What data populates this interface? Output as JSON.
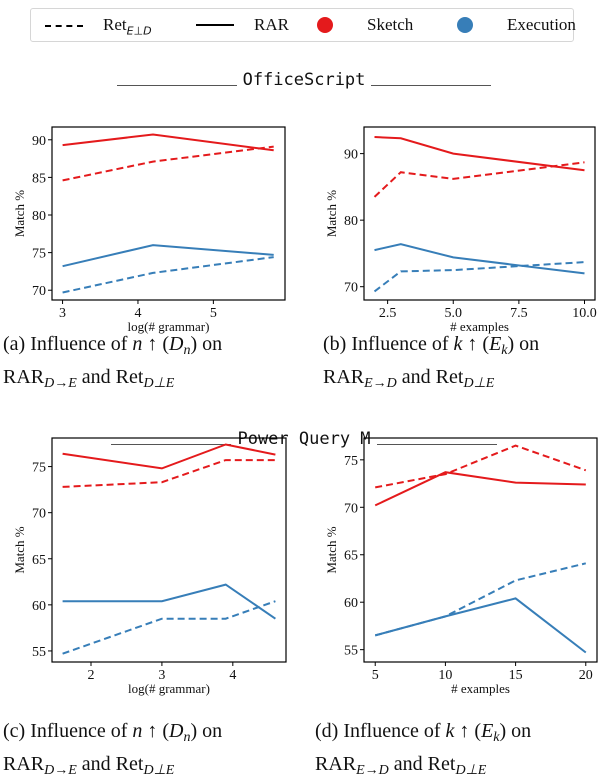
{
  "legend": {
    "items": [
      {
        "label": "Ret",
        "sub": "E⊥D",
        "marker": "dashed-line"
      },
      {
        "label": "RAR",
        "sub": "",
        "marker": "solid-line"
      },
      {
        "label": "Sketch",
        "marker": "dot",
        "color": "#e41a1c"
      },
      {
        "label": "Execution",
        "marker": "dot",
        "color": "#377eb8"
      }
    ]
  },
  "sections": [
    {
      "title": "OfficeScript"
    },
    {
      "title": "Power Query M"
    }
  ],
  "colors": {
    "sketch": "#e41a1c",
    "execution": "#377eb8"
  },
  "captions": [
    {
      "prefix": "(a) Influence of ",
      "var": "n",
      "arrow": " ↑ (",
      "sym": "D",
      "sub": "n",
      "suffix": ") on",
      "rar": "RAR",
      "rar_sub": "D→E",
      "and": " and Ret",
      "ret_sub": "D⊥E"
    },
    {
      "prefix": "(b) Influence of ",
      "var": "k",
      "arrow": " ↑ (",
      "sym": "E",
      "sub": "k",
      "suffix": ") on",
      "rar": "RAR",
      "rar_sub": "E→D",
      "and": " and Ret",
      "ret_sub": "D⊥E"
    },
    {
      "prefix": "(c) Influence of ",
      "var": "n",
      "arrow": " ↑ (",
      "sym": "D",
      "sub": "n",
      "suffix": ") on",
      "rar": "RAR",
      "rar_sub": "D→E",
      "and": " and Ret",
      "ret_sub": "D⊥E"
    },
    {
      "prefix": "(d) Influence of ",
      "var": "k",
      "arrow": " ↑ (",
      "sym": "E",
      "sub": "k",
      "suffix": ") on",
      "rar": "RAR",
      "rar_sub": "E→D",
      "and": " and Ret",
      "ret_sub": "D⊥E"
    }
  ],
  "chart_data": [
    {
      "type": "line",
      "xlabel": "log(# grammar)",
      "ylabel": "Match %",
      "xlim": [
        2.86,
        5.95
      ],
      "ylim": [
        68.7,
        91.7
      ],
      "grid": false,
      "xticks": [
        3,
        4,
        5
      ],
      "xtick_labels": [
        "3",
        "4",
        "5"
      ],
      "yticks": [
        70,
        75,
        80,
        85,
        90
      ],
      "ytick_labels": [
        "70",
        "75",
        "80",
        "85",
        "90"
      ],
      "x": [
        3,
        4.2,
        5.8
      ],
      "series": [
        {
          "metric": "Sketch",
          "method": "RAR",
          "style": "solid",
          "values": [
            89.3,
            90.7,
            88.6
          ]
        },
        {
          "metric": "Sketch",
          "method": "Ret",
          "style": "dashed",
          "values": [
            84.6,
            87.1,
            89.1
          ]
        },
        {
          "metric": "Execution",
          "method": "RAR",
          "style": "solid",
          "values": [
            73.2,
            76.0,
            74.7
          ]
        },
        {
          "metric": "Execution",
          "method": "Ret",
          "style": "dashed",
          "values": [
            69.7,
            72.3,
            74.4
          ]
        }
      ]
    },
    {
      "type": "line",
      "xlabel": "# examples",
      "ylabel": "Match %",
      "xlim": [
        1.6,
        10.4
      ],
      "ylim": [
        68.0,
        94.0
      ],
      "grid": false,
      "xticks": [
        2.5,
        5.0,
        7.5,
        10.0
      ],
      "xtick_labels": [
        "2.5",
        "5.0",
        "7.5",
        "10.0"
      ],
      "yticks": [
        70,
        80,
        90
      ],
      "ytick_labels": [
        "70",
        "80",
        "90"
      ],
      "x": [
        2,
        3,
        5,
        10
      ],
      "series": [
        {
          "metric": "Sketch",
          "method": "RAR",
          "style": "solid",
          "values": [
            92.5,
            92.3,
            90.0,
            87.5
          ]
        },
        {
          "metric": "Sketch",
          "method": "Ret",
          "style": "dashed",
          "values": [
            83.5,
            87.2,
            86.2,
            88.7
          ]
        },
        {
          "metric": "Execution",
          "method": "RAR",
          "style": "solid",
          "values": [
            75.5,
            76.4,
            74.4,
            72.0
          ]
        },
        {
          "metric": "Execution",
          "method": "Ret",
          "style": "dashed",
          "values": [
            69.3,
            72.3,
            72.5,
            73.7
          ]
        }
      ]
    },
    {
      "type": "line",
      "xlabel": "log(# grammar)",
      "ylabel": "Match %",
      "xlim": [
        1.45,
        4.75
      ],
      "ylim": [
        53.8,
        78.1
      ],
      "grid": false,
      "xticks": [
        2,
        3,
        4
      ],
      "xtick_labels": [
        "2",
        "3",
        "4"
      ],
      "yticks": [
        55,
        60,
        65,
        70,
        75
      ],
      "ytick_labels": [
        "55",
        "60",
        "65",
        "70",
        "75"
      ],
      "x": [
        1.6,
        3,
        3.9,
        4.6
      ],
      "series": [
        {
          "metric": "Sketch",
          "method": "RAR",
          "style": "solid",
          "values": [
            76.4,
            74.8,
            77.4,
            76.3
          ]
        },
        {
          "metric": "Sketch",
          "method": "Ret",
          "style": "dashed",
          "values": [
            72.8,
            73.3,
            75.7,
            75.7
          ]
        },
        {
          "metric": "Execution",
          "method": "RAR",
          "style": "solid",
          "values": [
            60.4,
            60.4,
            62.2,
            58.5
          ]
        },
        {
          "metric": "Execution",
          "method": "Ret",
          "style": "dashed",
          "values": [
            54.7,
            58.5,
            58.5,
            60.4
          ]
        }
      ]
    },
    {
      "type": "line",
      "xlabel": "# examples",
      "ylabel": "Match %",
      "xlim": [
        4.2,
        20.8
      ],
      "ylim": [
        53.7,
        77.3
      ],
      "grid": false,
      "xticks": [
        5,
        10,
        15,
        20
      ],
      "xtick_labels": [
        "5",
        "10",
        "15",
        "20"
      ],
      "yticks": [
        55,
        60,
        65,
        70,
        75
      ],
      "ytick_labels": [
        "55",
        "60",
        "65",
        "70",
        "75"
      ],
      "x": [
        5,
        10,
        15,
        20
      ],
      "series": [
        {
          "metric": "Sketch",
          "method": "RAR",
          "style": "solid",
          "values": [
            70.2,
            73.7,
            72.6,
            72.4
          ]
        },
        {
          "metric": "Sketch",
          "method": "Ret",
          "style": "dashed",
          "values": [
            72.1,
            73.5,
            76.5,
            73.9
          ]
        },
        {
          "metric": "Execution",
          "method": "RAR",
          "style": "solid",
          "values": [
            56.5,
            58.5,
            60.4,
            54.7
          ]
        },
        {
          "metric": "Execution",
          "method": "Ret",
          "style": "dashed",
          "values": [
            56.5,
            58.5,
            62.3,
            64.1
          ]
        }
      ]
    }
  ]
}
